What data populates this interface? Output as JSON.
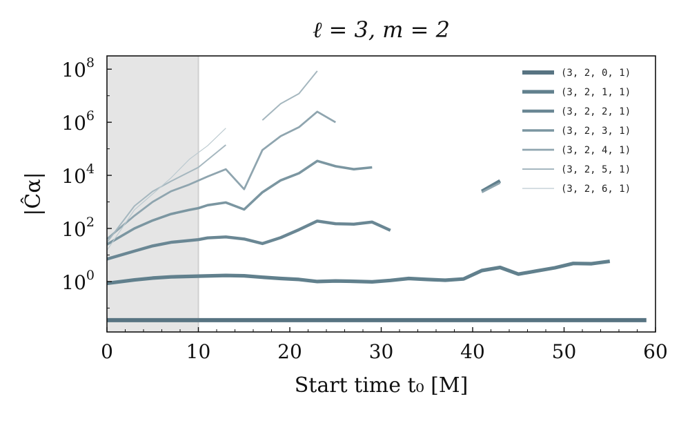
{
  "chart_data": {
    "type": "line",
    "title": "ℓ = 3, m = 2",
    "xlabel": "Start time t₀ [M]",
    "ylabel": "|Ĉα|",
    "xlim": [
      0,
      60
    ],
    "ylim_log10": [
      -1.9,
      8.5
    ],
    "yscale": "log",
    "grid": false,
    "legend_position": "top-right",
    "shaded_region": {
      "x_start": 0,
      "x_end": 10,
      "color": "#e5e5e5"
    },
    "x_ticks": [
      "0",
      "10",
      "20",
      "30",
      "40",
      "50",
      "60"
    ],
    "y_ticks": [
      {
        "base": "10",
        "exp": "0",
        "log10": 0
      },
      {
        "base": "10",
        "exp": "2",
        "log10": 2
      },
      {
        "base": "10",
        "exp": "4",
        "log10": 4
      },
      {
        "base": "10",
        "exp": "6",
        "log10": 6
      },
      {
        "base": "10",
        "exp": "8",
        "log10": 8
      }
    ],
    "series": [
      {
        "name": "(3, 2, 0, 1)",
        "color": "#587482",
        "segments": [
          [
            [
              0,
              0.035
            ],
            [
              59,
              0.035
            ]
          ]
        ]
      },
      {
        "name": "(3, 2, 1, 1)",
        "color": "#61808d",
        "segments": [
          [
            [
              0,
              0.85
            ],
            [
              3,
              1.15
            ],
            [
              5,
              1.35
            ],
            [
              7,
              1.5
            ],
            [
              10,
              1.6
            ],
            [
              13,
              1.7
            ],
            [
              15,
              1.65
            ],
            [
              17,
              1.45
            ],
            [
              19,
              1.3
            ],
            [
              21,
              1.2
            ],
            [
              23,
              1.0
            ],
            [
              25,
              1.05
            ],
            [
              27,
              1.02
            ],
            [
              29,
              0.97
            ],
            [
              31,
              1.1
            ],
            [
              33,
              1.3
            ],
            [
              35,
              1.2
            ],
            [
              37,
              1.12
            ],
            [
              39,
              1.25
            ],
            [
              41,
              2.6
            ],
            [
              43,
              3.4
            ],
            [
              45,
              1.9
            ],
            [
              47,
              2.5
            ],
            [
              49,
              3.3
            ],
            [
              51,
              4.8
            ],
            [
              53,
              4.7
            ],
            [
              55,
              5.8
            ]
          ],
          [
            [
              41,
              2500
            ],
            [
              43,
              6200
            ]
          ]
        ]
      },
      {
        "name": "(3, 2, 2, 1)",
        "color": "#6a8794",
        "segments": [
          [
            [
              0,
              7
            ],
            [
              3,
              14
            ],
            [
              5,
              22
            ],
            [
              7,
              30
            ],
            [
              10,
              38
            ],
            [
              11,
              44
            ],
            [
              13,
              48
            ],
            [
              15,
              40
            ],
            [
              17,
              27
            ],
            [
              19,
              45
            ],
            [
              21,
              90
            ],
            [
              23,
              190
            ],
            [
              25,
              150
            ],
            [
              27,
              145
            ],
            [
              29,
              175
            ],
            [
              31,
              85
            ]
          ]
        ]
      },
      {
        "name": "(3, 2, 3, 1)",
        "color": "#7b96a1",
        "segments": [
          [
            [
              0,
              25
            ],
            [
              3,
              100
            ],
            [
              5,
              200
            ],
            [
              7,
              350
            ],
            [
              9,
              500
            ],
            [
              10,
              580
            ],
            [
              11,
              750
            ],
            [
              13,
              950
            ],
            [
              15,
              520
            ],
            [
              17,
              2300
            ],
            [
              19,
              6500
            ],
            [
              21,
              12000
            ],
            [
              23,
              35000
            ],
            [
              25,
              22000
            ],
            [
              27,
              17000
            ],
            [
              29,
              20000
            ]
          ]
        ]
      },
      {
        "name": "(3, 2, 4, 1)",
        "color": "#8fa5af",
        "segments": [
          [
            [
              0,
              40
            ],
            [
              3,
              300
            ],
            [
              5,
              1000
            ],
            [
              7,
              2500
            ],
            [
              9,
              4500
            ],
            [
              11,
              9000
            ],
            [
              13,
              17000
            ],
            [
              15,
              3000
            ],
            [
              17,
              90000
            ],
            [
              19,
              300000
            ],
            [
              21,
              650000
            ],
            [
              23,
              2500000
            ],
            [
              25,
              1000000
            ]
          ],
          [
            [
              41,
              2300
            ],
            [
              43,
              5200
            ]
          ]
        ]
      },
      {
        "name": "(3, 2, 5, 1)",
        "color": "#a5b7bf",
        "segments": [
          [
            [
              0,
              30
            ],
            [
              3,
              700
            ],
            [
              5,
              2500
            ],
            [
              7,
              6000
            ],
            [
              10,
              20000
            ],
            [
              13,
              140000
            ]
          ],
          [
            [
              17,
              1200000
            ],
            [
              19,
              5000000
            ],
            [
              21,
              12000000
            ],
            [
              23,
              85000000
            ]
          ]
        ]
      },
      {
        "name": "(3, 2, 6, 1)",
        "color": "#bccad0",
        "segments": [
          [
            [
              0,
              15
            ],
            [
              3,
              500
            ],
            [
              5,
              2000
            ],
            [
              7,
              8000
            ],
            [
              9,
              40000
            ],
            [
              11,
              130000
            ],
            [
              13,
              600000
            ]
          ]
        ]
      }
    ]
  }
}
